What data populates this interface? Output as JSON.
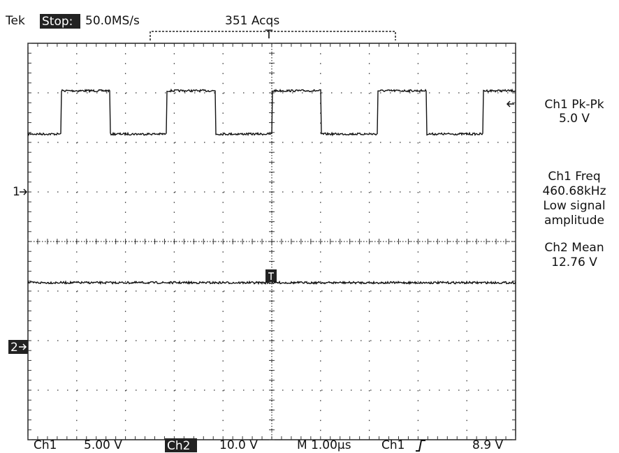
{
  "header": {
    "brand": "Tek",
    "state": "Stop:",
    "rate": "50.0MS/s",
    "acquisitions": "351 Acqs",
    "trigger_position": "T"
  },
  "markers": {
    "ch1": "1",
    "ch2": "2"
  },
  "measurements": [
    {
      "label": "Ch1 Pk-Pk",
      "value": "5.0 V"
    },
    {
      "label": "Ch1 Freq",
      "value": "460.68kHz",
      "note": [
        "Low signal",
        "amplitude"
      ]
    },
    {
      "label": "Ch2 Mean",
      "value": "12.76 V"
    }
  ],
  "status": {
    "ch1": "Ch1",
    "ch1_scale": "5.00 V",
    "ch2": "Ch2",
    "ch2_scale": "10.0 V",
    "timebase": "M 1.00µs",
    "trigger_source": "Ch1",
    "trigger_level": "8.9 V"
  }
}
